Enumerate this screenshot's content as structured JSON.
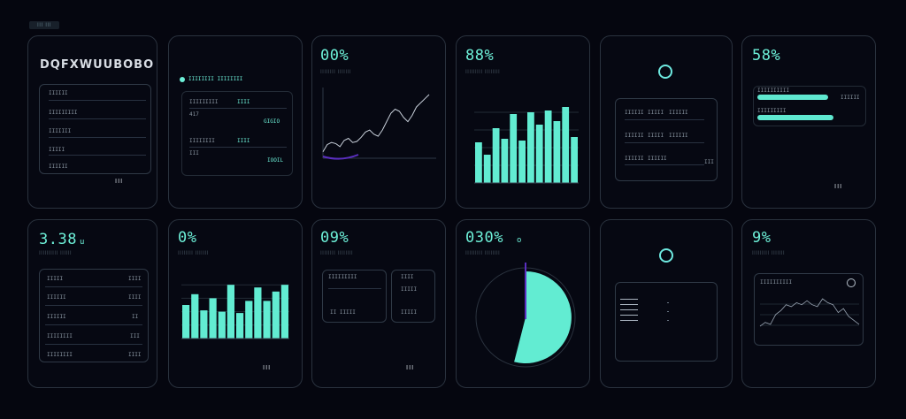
{
  "header": {
    "tag": "III III"
  },
  "cards": {
    "c1": {
      "title": "DQFXWUUBOBO",
      "rows": [
        "IIIIII",
        "IIIIIIIII",
        "IIIIIII",
        "IIIII",
        "IIIIII"
      ],
      "footer": "III"
    },
    "c2": {
      "title": "IIIIIIII IIIIIIII",
      "rows": [
        {
          "label": "IIIIIIIII",
          "value": "IIII"
        },
        {
          "label": "417",
          "value": ""
        },
        {
          "label": "",
          "value": "GIGIO"
        },
        {
          "label": "IIIIIIII",
          "value": "IIII"
        },
        {
          "label": "III",
          "value": ""
        },
        {
          "label": "",
          "value": "IOOIL"
        }
      ]
    },
    "c3": {
      "value": "00%",
      "subtitle": "IIIIIIII IIIIIII"
    },
    "c4": {
      "value": "88%",
      "subtitle": "IIIIIIIII IIIIIIII"
    },
    "c5": {
      "rows": [
        {
          "a": "IIIIII",
          "b": "IIIII",
          "c": "IIIIII"
        },
        {
          "a": "IIIIII",
          "b": "IIIII",
          "c": "IIIIII"
        },
        {
          "a": "IIIIII",
          "b": "IIIIII",
          "c": "III"
        }
      ]
    },
    "c6": {
      "value": "58%",
      "rows": [
        "IIIIIIIIII",
        "IIIIIIIII",
        "IIIIII"
      ],
      "footer": "III"
    },
    "c7": {
      "value": "3.38",
      "unit": "u",
      "subtitle": "IIIIIIIIII IIIIII",
      "rows": [
        {
          "label": "IIIII",
          "value": "IIII"
        },
        {
          "label": "IIIIII",
          "value": "IIII"
        },
        {
          "label": "IIIIII",
          "value": "II"
        },
        {
          "label": "IIIIIIII",
          "value": "III"
        },
        {
          "label": "IIIIIIII",
          "value": "IIII"
        }
      ]
    },
    "c8": {
      "value": "0%",
      "subtitle": "IIIIIIII IIIIIII",
      "footer": "III"
    },
    "c9": {
      "value": "09%",
      "subtitle": "IIIIIIII IIIIIIII",
      "left": {
        "title": "IIIIIIIII",
        "foot": "II IIIII"
      },
      "right": {
        "title": "IIII",
        "mid": "IIIII",
        "foot": "IIIII"
      },
      "footer": "III"
    },
    "c10": {
      "value": "030%",
      "unit": "o",
      "subtitle": "IIIIIIIII IIIIIIII"
    },
    "c11": {},
    "c12": {
      "value": "9%",
      "subtitle": "IIIIIIIII IIIIIII",
      "panel_title": "IIIIIIIIII"
    }
  },
  "chart_data": [
    {
      "type": "line",
      "x": [
        0,
        1,
        2,
        3,
        4,
        5,
        6,
        7,
        8,
        9,
        10,
        11,
        12,
        13,
        14,
        15,
        16,
        17,
        18,
        19,
        20,
        21,
        22,
        23,
        24,
        25
      ],
      "values": [
        1,
        8,
        10,
        9,
        6,
        12,
        14,
        10,
        11,
        15,
        20,
        22,
        18,
        16,
        22,
        30,
        38,
        42,
        40,
        34,
        30,
        36,
        44,
        48,
        52,
        56
      ]
    },
    {
      "type": "bar",
      "categories": [
        "1",
        "2",
        "3",
        "4",
        "5",
        "6",
        "7",
        "8",
        "9",
        "10",
        "11",
        "12"
      ],
      "values": [
        46,
        32,
        62,
        50,
        78,
        48,
        80,
        66,
        82,
        70,
        86,
        52
      ],
      "ylim": [
        0,
        100
      ]
    },
    {
      "type": "bar",
      "categories": [
        "1",
        "2",
        "3",
        "4",
        "5",
        "6",
        "7",
        "8",
        "9",
        "10",
        "11",
        "12"
      ],
      "values": [
        50,
        66,
        42,
        60,
        40,
        80,
        38,
        56,
        76,
        56,
        70,
        80
      ],
      "ylim": [
        0,
        100
      ]
    },
    {
      "type": "pie",
      "values": [
        46,
        54
      ]
    },
    {
      "type": "line",
      "x": [
        0,
        1,
        2,
        3,
        4,
        5,
        6,
        7,
        8,
        9,
        10,
        11,
        12,
        13,
        14,
        15,
        16,
        17,
        18,
        19
      ],
      "values": [
        8,
        12,
        10,
        20,
        24,
        30,
        28,
        32,
        30,
        34,
        30,
        28,
        36,
        32,
        30,
        22,
        26,
        18,
        14,
        10
      ]
    }
  ],
  "colors": {
    "accent": "#62ecd2",
    "purple": "#5a2fc0",
    "ring": "#6ee9e0"
  }
}
